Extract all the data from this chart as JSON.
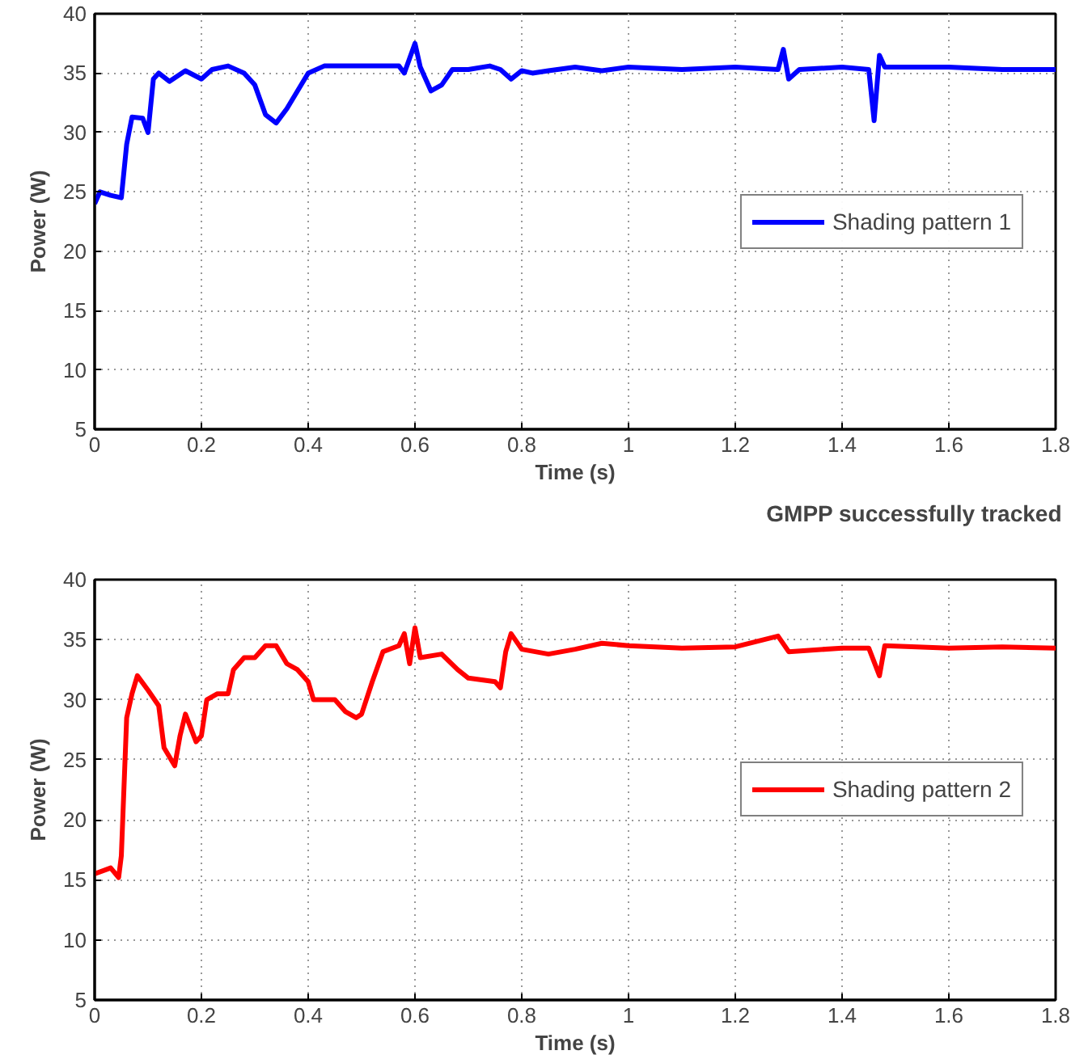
{
  "chart_data": [
    {
      "type": "line",
      "xlabel": "Time (s)",
      "ylabel": "Power (W)",
      "xlim": [
        0,
        1.8
      ],
      "ylim": [
        5,
        40
      ],
      "xticks": [
        0,
        0.2,
        0.4,
        0.6,
        0.8,
        1,
        1.2,
        1.4,
        1.6,
        1.8
      ],
      "yticks": [
        5,
        10,
        15,
        20,
        25,
        30,
        35,
        40
      ],
      "grid": true,
      "legend": "right",
      "line_style": "solid",
      "annotations": [
        "GMPP successfully tracked"
      ],
      "series": [
        {
          "name": "Shading pattern 1",
          "color": "#0000ff",
          "x": [
            0,
            0.01,
            0.03,
            0.05,
            0.06,
            0.07,
            0.09,
            0.1,
            0.11,
            0.12,
            0.14,
            0.17,
            0.2,
            0.22,
            0.25,
            0.28,
            0.3,
            0.32,
            0.34,
            0.36,
            0.38,
            0.4,
            0.43,
            0.5,
            0.57,
            0.58,
            0.6,
            0.61,
            0.63,
            0.65,
            0.67,
            0.7,
            0.74,
            0.76,
            0.78,
            0.8,
            0.82,
            0.85,
            0.9,
            0.95,
            1.0,
            1.1,
            1.2,
            1.28,
            1.29,
            1.3,
            1.32,
            1.4,
            1.45,
            1.46,
            1.47,
            1.48,
            1.6,
            1.7,
            1.8
          ],
          "values": [
            24,
            25,
            24.7,
            24.5,
            29,
            31.3,
            31.2,
            30,
            34.5,
            35,
            34.3,
            35.2,
            34.5,
            35.3,
            35.6,
            35,
            34,
            31.5,
            30.8,
            32,
            33.5,
            35,
            35.6,
            35.6,
            35.6,
            35,
            37.5,
            35.5,
            33.5,
            34,
            35.3,
            35.3,
            35.6,
            35.3,
            34.5,
            35.2,
            35,
            35.2,
            35.5,
            35.2,
            35.5,
            35.3,
            35.5,
            35.3,
            37,
            34.5,
            35.3,
            35.5,
            35.3,
            31,
            36.5,
            35.5,
            35.5,
            35.3,
            35.3
          ]
        }
      ]
    },
    {
      "type": "line",
      "xlabel": "Time (s)",
      "ylabel": "Power (W)",
      "xlim": [
        0,
        1.8
      ],
      "ylim": [
        5,
        40
      ],
      "xticks": [
        0,
        0.2,
        0.4,
        0.6,
        0.8,
        1,
        1.2,
        1.4,
        1.6,
        1.8
      ],
      "yticks": [
        5,
        10,
        15,
        20,
        25,
        30,
        35,
        40
      ],
      "grid": true,
      "legend": "right",
      "line_style": "solid",
      "series": [
        {
          "name": "Shading pattern 2",
          "color": "#ff0000",
          "x": [
            0,
            0.03,
            0.045,
            0.05,
            0.06,
            0.07,
            0.08,
            0.1,
            0.12,
            0.13,
            0.15,
            0.16,
            0.17,
            0.19,
            0.2,
            0.21,
            0.23,
            0.25,
            0.26,
            0.28,
            0.3,
            0.32,
            0.34,
            0.36,
            0.38,
            0.4,
            0.41,
            0.45,
            0.47,
            0.49,
            0.5,
            0.52,
            0.54,
            0.57,
            0.58,
            0.59,
            0.6,
            0.61,
            0.65,
            0.68,
            0.7,
            0.75,
            0.76,
            0.77,
            0.78,
            0.8,
            0.85,
            0.9,
            0.95,
            1.0,
            1.1,
            1.2,
            1.28,
            1.3,
            1.4,
            1.45,
            1.47,
            1.48,
            1.6,
            1.7,
            1.8
          ],
          "values": [
            15.5,
            16,
            15.2,
            17,
            28.5,
            30.5,
            32,
            30.8,
            29.5,
            26,
            24.5,
            27,
            28.8,
            26.5,
            27,
            30,
            30.5,
            30.5,
            32.5,
            33.5,
            33.5,
            34.5,
            34.5,
            33,
            32.5,
            31.5,
            30,
            30,
            29,
            28.5,
            28.8,
            31.5,
            34,
            34.5,
            35.5,
            33,
            36,
            33.5,
            33.8,
            32.5,
            31.8,
            31.5,
            31,
            34,
            35.5,
            34.2,
            33.8,
            34.2,
            34.7,
            34.5,
            34.3,
            34.4,
            35.3,
            34,
            34.3,
            34.3,
            32,
            34.5,
            34.3,
            34.4,
            34.3
          ]
        }
      ]
    }
  ]
}
